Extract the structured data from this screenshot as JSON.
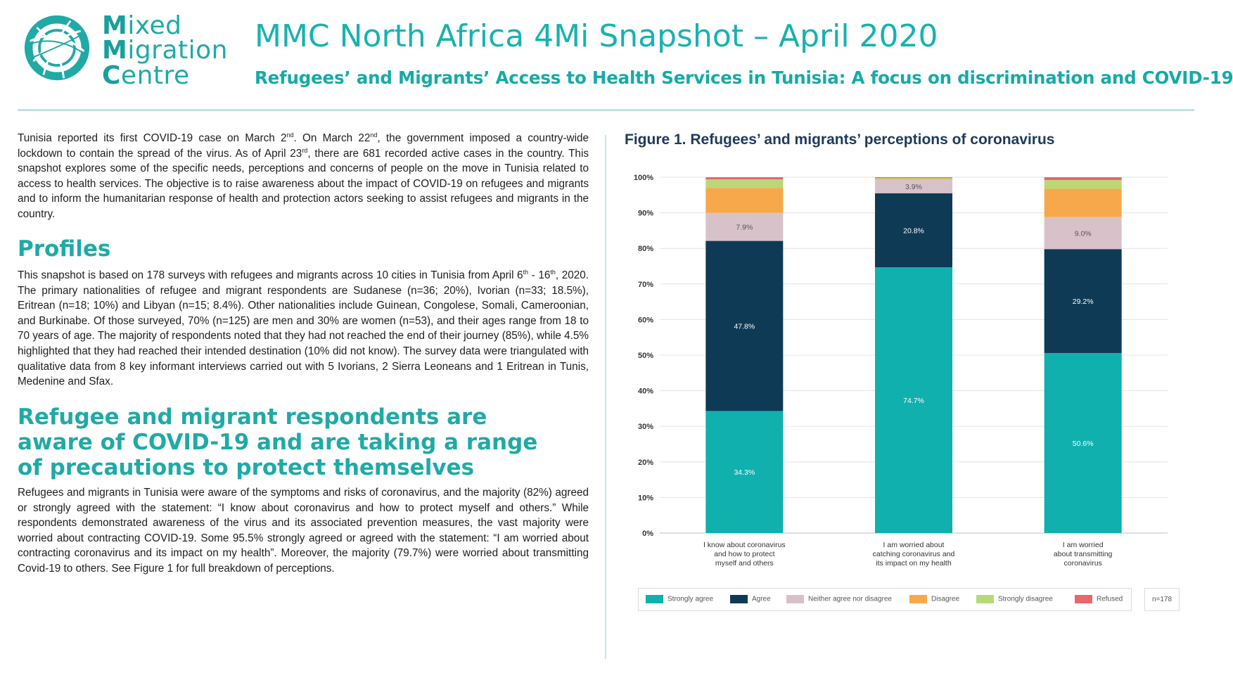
{
  "logo": {
    "lines": [
      "Mixed",
      "Migration",
      "Centre"
    ],
    "first_letters": [
      "M",
      "M",
      "C"
    ],
    "rests": [
      "ixed",
      "igration",
      "entre"
    ],
    "color": "#1faaa6"
  },
  "header": {
    "title": "MMC North Africa 4Mi Snapshot – April 2020",
    "subtitle": "Refugees’ and Migrants’ Access to Health Services in Tunisia: A focus on discrimination and COVID-19"
  },
  "intro": {
    "parts": [
      "Tunisia reported its first COVID-19 case on March 2",
      "nd",
      ". On March 22",
      "nd",
      ", the government imposed a country-wide lockdown to contain the spread of the virus. As of April 23",
      "rd",
      ", there are 681 recorded active cases in the country. This snapshot explores some of the specific needs, perceptions and concerns of people on the move in Tunisia related to access to health services. The objective is to raise awareness about the impact of COVID-19 on refugees and migrants and to inform the humanitarian response of health and protection actors seeking to assist refugees and migrants in the country."
    ]
  },
  "profiles": {
    "heading": "Profiles",
    "parts": [
      "This snapshot is based on 178 surveys with refugees and migrants across 10 cities in Tunisia from April 6",
      "th",
      " - 16",
      "th",
      ", 2020. The primary nationalities of refugee and migrant respondents are Sudanese (n=36; 20%), Ivorian (n=33; 18.5%), Eritrean (n=18; 10%) and Libyan (n=15; 8.4%). Other nationalities include Guinean, Congolese, Somali, Cameroonian, and Burkinabe. Of those surveyed, 70% (n=125) are men and 30% are women (n=53), and their ages range from 18 to 70 years of age. The majority of respondents noted that they had not reached the end of their journey (85%), while 4.5% highlighted that they had reached their intended destination (10% did not know). The survey data were triangulated with qualitative data from 8 key informant interviews carried out with 5 Ivorians, 2 Sierra Leoneans and 1 Eritrean in Tunis, Medenine and Sfax."
    ]
  },
  "awareness": {
    "heading": "Refugee and migrant respondents are aware of COVID-19 and are taking a range of precautions to protect themselves",
    "text": "Refugees and migrants in Tunisia were aware of the symptoms and risks of coronavirus, and the majority (82%) agreed or strongly agreed with the statement: “I know about coronavirus and how to protect myself and others.”  While respondents demonstrated awareness of the virus and its associated prevention measures, the vast majority were worried about contracting COVID-19. Some 95.5% strongly agreed or agreed with the statement: “I am worried about contracting coronavirus and its impact on my health”. Moreover, the majority (79.7%) were worried about transmitting Covid-19 to others.  See Figure 1 for full breakdown of perceptions."
  },
  "figure": {
    "title": "Figure 1. Refugees’ and migrants’ perceptions of coronavirus",
    "n_label": "n=178"
  },
  "chart_data": {
    "type": "bar",
    "stacked": true,
    "categories": [
      [
        "I know about coronavirus",
        "and how to protect",
        "myself and others"
      ],
      [
        "I am worried about",
        "catching coronavirus and",
        "its impact on my health"
      ],
      [
        "I am worried",
        "about transmitting",
        "coronavirus"
      ]
    ],
    "series": [
      {
        "name": "Strongly agree",
        "color": "#10b0ae",
        "values": [
          34.3,
          74.7,
          50.6
        ],
        "labels": [
          "34.3%",
          "74.7%",
          "50.6%"
        ]
      },
      {
        "name": "Agree",
        "color": "#0e3a56",
        "values": [
          47.8,
          20.8,
          29.2
        ],
        "labels": [
          "47.8%",
          "20.8%",
          "29.2%"
        ]
      },
      {
        "name": "Neither agree nor disagree",
        "color": "#d8c2c9",
        "values": [
          7.9,
          3.9,
          9.0
        ],
        "labels": [
          "7.9%",
          "3.9%",
          "9.0%"
        ]
      },
      {
        "name": "Disagree",
        "color": "#f7a84a",
        "values": [
          7.0,
          0.2,
          8.0
        ],
        "labels": [
          "",
          "",
          ""
        ]
      },
      {
        "name": "Strongly disagree",
        "color": "#b9d87a",
        "values": [
          2.4,
          0.2,
          2.4
        ],
        "labels": [
          "",
          "",
          ""
        ]
      },
      {
        "name": "Refused",
        "color": "#e9666a",
        "values": [
          0.6,
          0.2,
          0.8
        ],
        "labels": [
          "",
          "",
          ""
        ]
      }
    ],
    "yticks": [
      "0%",
      "10%",
      "20%",
      "30%",
      "40%",
      "50%",
      "60%",
      "70%",
      "80%",
      "90%",
      "100%"
    ],
    "ylim": [
      0,
      100
    ],
    "grid": true,
    "legend_position": "bottom"
  }
}
